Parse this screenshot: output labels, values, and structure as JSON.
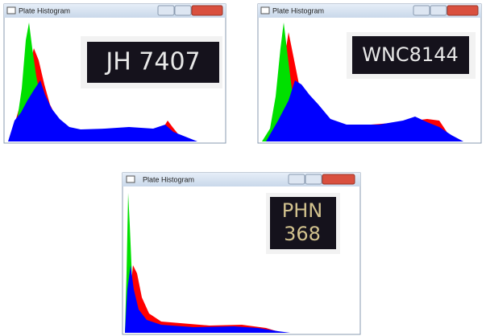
{
  "windows": [
    {
      "title": "Plate Histogram",
      "plate": [
        "JH 7407"
      ]
    },
    {
      "title": "Plate Histogram",
      "plate": [
        "WNC8144"
      ]
    },
    {
      "title": "Plate Histogram",
      "plate": [
        "PHN",
        "368"
      ]
    }
  ]
}
